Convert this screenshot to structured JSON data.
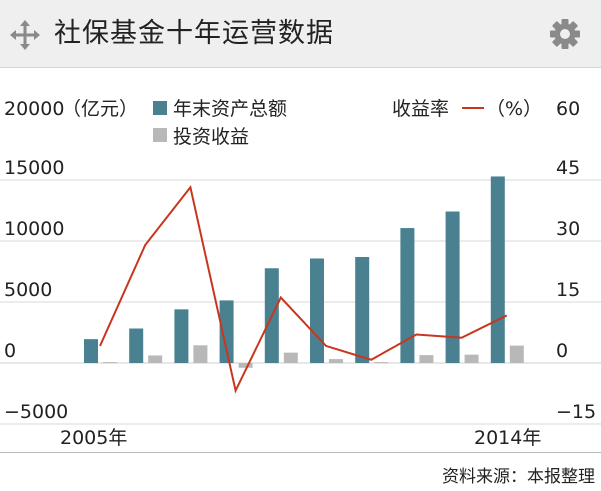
{
  "header": {
    "title": "社保基金十年运营数据",
    "left_icon": "move-arrows-icon",
    "right_icon": "gear-icon"
  },
  "footer": {
    "source": "资料来源：本报整理"
  },
  "colors": {
    "assets": "#4a8191",
    "income": "#b8b8b8",
    "rate": "#c8361f",
    "grid": "#d9d9d9"
  },
  "chart_data": {
    "type": "bar",
    "x_labels": {
      "start": "2005年",
      "end": "2014年"
    },
    "x": [
      2005,
      2006,
      2007,
      2008,
      2009,
      2010,
      2011,
      2012,
      2013,
      2014
    ],
    "left_axis": {
      "unit_label": "（亿元）",
      "range": [
        -5000,
        20000
      ],
      "ticks": [
        "20000",
        "15000",
        "10000",
        "5000",
        "0",
        "−5000"
      ]
    },
    "right_axis": {
      "unit_label": "（%）",
      "range": [
        -15,
        60
      ],
      "ticks": [
        "60",
        "45",
        "30",
        "15",
        "0",
        "−15"
      ]
    },
    "series": [
      {
        "name": "年末资产总额",
        "kind": "bar",
        "axis": "left",
        "values": [
          1954,
          2828,
          4397,
          5130,
          7766,
          8567,
          8688,
          11060,
          12416,
          15290
        ]
      },
      {
        "name": "投资收益",
        "kind": "bar",
        "axis": "left",
        "values": [
          72,
          620,
          1453,
          -393,
          850,
          321,
          73,
          646,
          685,
          1424
        ]
      },
      {
        "name": "收益率",
        "kind": "line",
        "axis": "right",
        "values": [
          4.2,
          29.0,
          43.2,
          -6.8,
          16.1,
          4.2,
          0.8,
          7.0,
          6.2,
          11.7
        ]
      }
    ],
    "legend": {
      "position": "top",
      "assets_label": "年末资产总额",
      "income_label": "投资收益",
      "rate_label": "收益率"
    },
    "grid": true
  }
}
